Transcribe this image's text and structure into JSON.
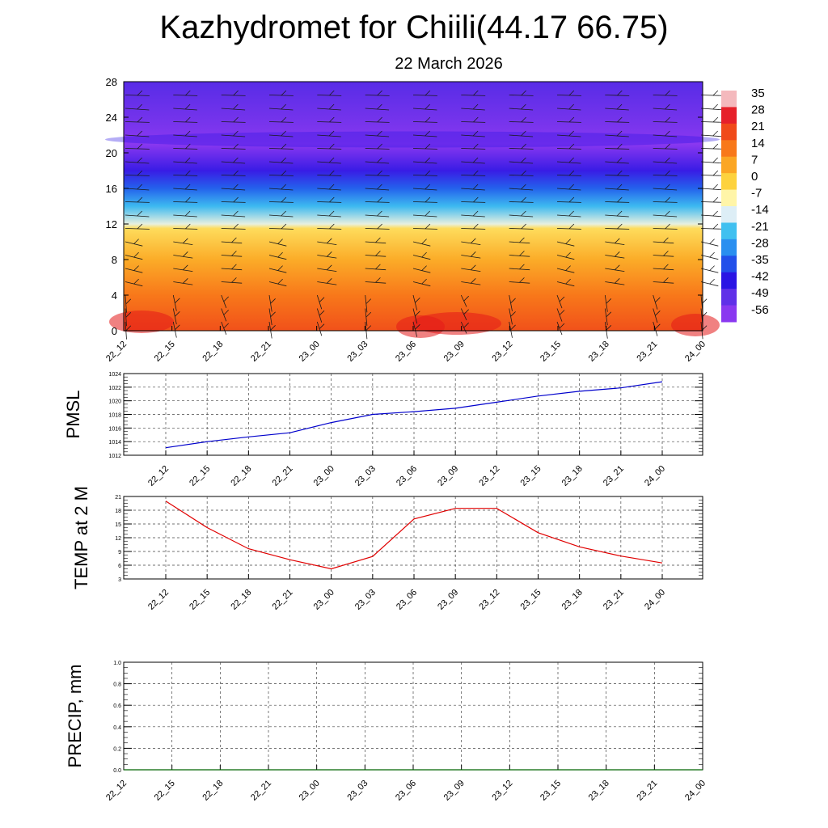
{
  "title": "Kazhydromet for Chiili(44.17 66.75)",
  "subtitle": "22 March 2026",
  "chart_data": [
    {
      "type": "heatmap",
      "name": "temperature-wind-profile",
      "x_labels": [
        "22_12",
        "22_15",
        "22_18",
        "22_21",
        "23_00",
        "23_03",
        "23_06",
        "23_09",
        "23_12",
        "23_15",
        "23_18",
        "23_21",
        "24_00"
      ],
      "y_ticks": [
        0,
        4,
        8,
        12,
        16,
        20,
        24,
        28
      ],
      "ylim": [
        0,
        28
      ],
      "colorbar": {
        "labels": [
          35,
          28,
          21,
          14,
          7,
          0,
          -7,
          -14,
          -21,
          -28,
          -35,
          -42,
          -49,
          -56
        ],
        "colors": [
          "#f4b9bd",
          "#e6202a",
          "#f04a1a",
          "#f8781a",
          "#fba624",
          "#fdd23d",
          "#fff5a8",
          "#ddeef6",
          "#40c0f0",
          "#2a8ff0",
          "#2250ea",
          "#2a14e4",
          "#6030e8",
          "#8a38f0"
        ]
      },
      "temperature_profile": [
        {
          "height": 0,
          "t": 20
        },
        {
          "height": 4,
          "t": 14
        },
        {
          "height": 8,
          "t": 6
        },
        {
          "height": 11.5,
          "t": -2
        },
        {
          "height": 12,
          "t": -12
        },
        {
          "height": 14,
          "t": -22
        },
        {
          "height": 16,
          "t": -33
        },
        {
          "height": 18,
          "t": -44
        },
        {
          "height": 21,
          "t": -56
        },
        {
          "height": 24,
          "t": -52
        },
        {
          "height": 28,
          "t": -48
        }
      ]
    },
    {
      "type": "line",
      "name": "pmsl",
      "ylabel": "PMSL",
      "x": [
        "22_12",
        "22_15",
        "22_18",
        "22_21",
        "23_00",
        "23_03",
        "23_06",
        "23_09",
        "23_12",
        "23_15",
        "23_18",
        "23_21",
        "24_00"
      ],
      "values": [
        1013.1,
        1014.0,
        1014.7,
        1015.3,
        1016.8,
        1018.0,
        1018.4,
        1018.9,
        1019.8,
        1020.7,
        1021.4,
        1021.9,
        1022.8
      ],
      "ylim": [
        1012,
        1024
      ],
      "y_ticks": [
        1012,
        1014,
        1016,
        1018,
        1020,
        1022,
        1024
      ],
      "color": "#0000cc"
    },
    {
      "type": "line",
      "name": "temp-2m",
      "ylabel": "TEMP at 2 M",
      "x": [
        "22_12",
        "22_15",
        "22_18",
        "22_21",
        "23_00",
        "23_03",
        "23_06",
        "23_09",
        "23_12",
        "23_15",
        "23_18",
        "23_21",
        "24_00"
      ],
      "values": [
        20.0,
        14.2,
        9.6,
        7.2,
        5.2,
        7.9,
        16.1,
        18.4,
        18.4,
        13.1,
        10.0,
        8.0,
        6.5
      ],
      "ylim": [
        3,
        21
      ],
      "y_ticks": [
        3,
        6,
        9,
        12,
        15,
        18,
        21
      ],
      "color": "#e00000"
    },
    {
      "type": "line",
      "name": "precip",
      "ylabel": "PRECIP, mm",
      "x_labels": [
        "22_12",
        "22_15",
        "22_18",
        "22_21",
        "23_00",
        "23_03",
        "23_06",
        "23_09",
        "23_12",
        "23_15",
        "23_18",
        "23_21",
        "24_00"
      ],
      "values": [
        0,
        0,
        0,
        0,
        0,
        0,
        0,
        0,
        0,
        0,
        0,
        0,
        0
      ],
      "ylim": [
        0,
        1
      ],
      "y_ticks": [
        "0.0",
        "0.2",
        "0.4",
        "0.6",
        "0.8",
        "1.0"
      ],
      "color": "#006400"
    }
  ]
}
